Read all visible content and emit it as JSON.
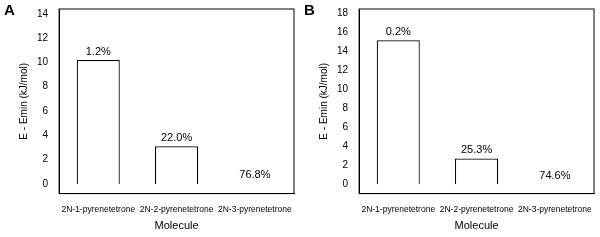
{
  "chart_data": [
    {
      "type": "bar",
      "title": "A",
      "categories": [
        "2N-1-pyrenetetrone",
        "2N-2-pyrenetetrone",
        "2N-3-pyrenetetrone"
      ],
      "values": [
        10.2,
        3.1,
        0
      ],
      "annotations": [
        "1.2%",
        "22.0%",
        "76.8%"
      ],
      "color": "#ffffff",
      "x_label": "Molecule",
      "y_label": "E - Emin (kJ/mol)",
      "ylim": [
        -0.8,
        14.4
      ],
      "yticks": [
        0,
        2,
        4,
        6,
        8,
        10,
        12,
        14
      ],
      "grid": false
    },
    {
      "type": "bar",
      "title": "B",
      "categories": [
        "2N-1-pyrenetetrone",
        "2N-2-pyrenetetrone",
        "2N-3-pyrenetetrone"
      ],
      "values": [
        15.2,
        2.7,
        0
      ],
      "annotations": [
        "0.2%",
        "25.3%",
        "74.6%"
      ],
      "color": "#ffffff",
      "x_label": "Molecule",
      "y_label": "E - Emin (kJ/mol)",
      "ylim": [
        -1,
        18.5
      ],
      "yticks": [
        0,
        2,
        4,
        6,
        8,
        10,
        12,
        14,
        16,
        18
      ],
      "grid": false
    }
  ]
}
